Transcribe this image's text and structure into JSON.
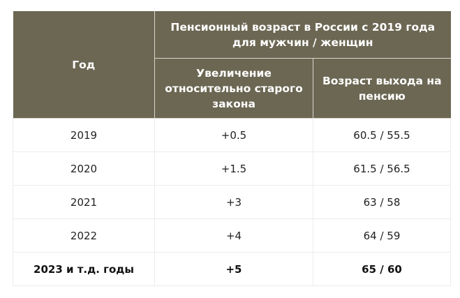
{
  "table": {
    "header": {
      "year": "Год",
      "group": "Пенсионный возраст в России с 2019 года для мужчин / женщин",
      "increase": "Увеличение относительно старого закона",
      "retirement_age": "Возраст выхода на пенсию"
    },
    "rows": [
      {
        "year": "2019",
        "increase": "+0.5",
        "age": "60.5 / 55.5"
      },
      {
        "year": "2020",
        "increase": "+1.5",
        "age": "61.5 / 56.5"
      },
      {
        "year": "2021",
        "increase": "+3",
        "age": "63 / 58"
      },
      {
        "year": "2022",
        "increase": "+4",
        "age": "64 / 59"
      },
      {
        "year": "2023 и т.д. годы",
        "increase": "+5",
        "age": "65 / 60"
      }
    ],
    "header_color": "#6c6753"
  }
}
